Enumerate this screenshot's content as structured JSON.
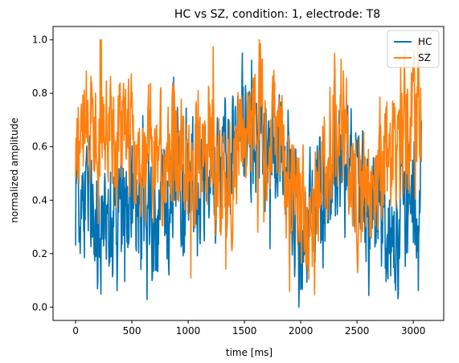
{
  "chart_data": {
    "type": "line",
    "title": "HC vs SZ, condition: 1, electrode: T8",
    "xlabel": "time [ms]",
    "ylabel": "normalized amplitude",
    "xlim": [
      -200,
      3270
    ],
    "ylim": [
      -0.05,
      1.05
    ],
    "xticks": [
      0,
      500,
      1000,
      1500,
      2000,
      2500,
      3000
    ],
    "yticks": [
      0.0,
      0.2,
      0.4,
      0.6,
      0.8,
      1.0
    ],
    "xtick_labels": [
      "0",
      "500",
      "1000",
      "1500",
      "2000",
      "2500",
      "3000"
    ],
    "ytick_labels": [
      "0.0",
      "0.2",
      "0.4",
      "0.6",
      "0.8",
      "1.0"
    ],
    "grid": false,
    "legend_position": "top-right",
    "x_range": [
      0,
      3072
    ],
    "colors": {
      "HC": "#0072b2",
      "SZ": "#ff7f0e"
    },
    "series": [
      {
        "name": "HC",
        "color": "#0072b2",
        "x": [
          0,
          100,
          200,
          300,
          400,
          500,
          600,
          700,
          800,
          900,
          1000,
          1100,
          1200,
          1300,
          1400,
          1500,
          1600,
          1700,
          1800,
          1900,
          2000,
          2100,
          2200,
          2300,
          2400,
          2500,
          2600,
          2700,
          2800,
          2900,
          3000,
          3072
        ],
        "y": [
          0.48,
          0.4,
          0.35,
          0.3,
          0.33,
          0.38,
          0.33,
          0.3,
          0.36,
          0.42,
          0.46,
          0.5,
          0.48,
          0.55,
          0.62,
          0.7,
          0.62,
          0.58,
          0.6,
          0.48,
          0.36,
          0.34,
          0.42,
          0.5,
          0.56,
          0.4,
          0.36,
          0.34,
          0.32,
          0.4,
          0.46,
          0.5
        ],
        "min": 0.0,
        "max": 0.99
      },
      {
        "name": "SZ",
        "color": "#ff7f0e",
        "x": [
          0,
          100,
          200,
          300,
          400,
          500,
          600,
          700,
          800,
          900,
          1000,
          1100,
          1200,
          1300,
          1400,
          1500,
          1600,
          1700,
          1800,
          1900,
          2000,
          2100,
          2200,
          2300,
          2400,
          2500,
          2600,
          2700,
          2800,
          2900,
          3000,
          3072
        ],
        "y": [
          0.5,
          0.72,
          0.78,
          0.7,
          0.62,
          0.58,
          0.52,
          0.55,
          0.52,
          0.6,
          0.52,
          0.5,
          0.58,
          0.55,
          0.42,
          0.68,
          0.72,
          0.58,
          0.65,
          0.36,
          0.3,
          0.36,
          0.5,
          0.66,
          0.6,
          0.45,
          0.42,
          0.5,
          0.56,
          0.65,
          0.68,
          0.8
        ],
        "min": 0.0,
        "max": 1.0
      }
    ]
  }
}
